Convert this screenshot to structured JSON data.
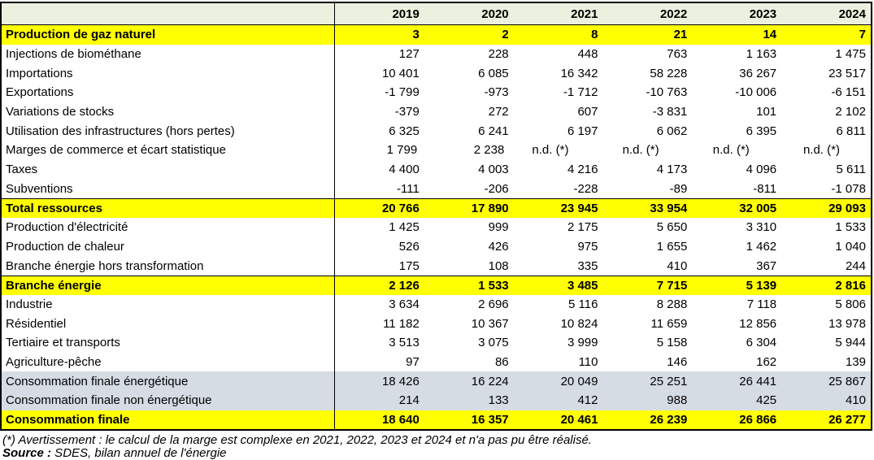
{
  "chart_data": {
    "type": "table",
    "title": "",
    "unit": "",
    "years": [
      "2019",
      "2020",
      "2021",
      "2022",
      "2023",
      "2024"
    ],
    "rows": [
      {
        "label": "Production de gaz naturel",
        "style": "yellow",
        "values": [
          "3",
          "2",
          "8",
          "21",
          "14",
          "7"
        ]
      },
      {
        "label": "Injections de biométhane",
        "style": "plain",
        "values": [
          "127",
          "228",
          "448",
          "763",
          "1 163",
          "1 475"
        ]
      },
      {
        "label": "Importations",
        "style": "plain",
        "values": [
          "10 401",
          "6 085",
          "16 342",
          "58 228",
          "36 267",
          "23 517"
        ]
      },
      {
        "label": "Exportations",
        "style": "plain",
        "values": [
          "-1 799",
          "-973",
          "-1 712",
          "-10 763",
          "-10 006",
          "-6 151"
        ]
      },
      {
        "label": "Variations de stocks",
        "style": "plain",
        "values": [
          "-379",
          "272",
          "607",
          "-3 831",
          "101",
          "2 102"
        ]
      },
      {
        "label": "Utilisation des infrastructures (hors pertes)",
        "style": "plain",
        "values": [
          "6 325",
          "6 241",
          "6 197",
          "6 062",
          "6 395",
          "6 811"
        ]
      },
      {
        "label": "Marges de commerce et écart statistique",
        "style": "plain",
        "values": [
          "1 799",
          "2 238",
          "n.d. (*)",
          "n.d. (*)",
          "n.d. (*)",
          "n.d. (*)"
        ]
      },
      {
        "label": "Taxes",
        "style": "plain",
        "values": [
          "4 400",
          "4 003",
          "4 216",
          "4 173",
          "4 096",
          "5 611"
        ]
      },
      {
        "label": "Subventions",
        "style": "plain",
        "values": [
          "-111",
          "-206",
          "-228",
          "-89",
          "-811",
          "-1 078"
        ]
      },
      {
        "label": "Total ressources",
        "style": "yellow",
        "values": [
          "20 766",
          "17 890",
          "23 945",
          "33 954",
          "32 005",
          "29 093"
        ]
      },
      {
        "label": "Production d'électricité",
        "style": "plain",
        "values": [
          "1 425",
          "999",
          "2 175",
          "5 650",
          "3 310",
          "1 533"
        ]
      },
      {
        "label": "Production de chaleur",
        "style": "plain",
        "values": [
          "526",
          "426",
          "975",
          "1 655",
          "1 462",
          "1 040"
        ]
      },
      {
        "label": "Branche énergie hors transformation",
        "style": "plain",
        "values": [
          "175",
          "108",
          "335",
          "410",
          "367",
          "244"
        ]
      },
      {
        "label": "Branche énergie",
        "style": "yellow",
        "values": [
          "2 126",
          "1 533",
          "3 485",
          "7 715",
          "5 139",
          "2 816"
        ]
      },
      {
        "label": "Industrie",
        "style": "plain",
        "values": [
          "3 634",
          "2 696",
          "5 116",
          "8 288",
          "7 118",
          "5 806"
        ]
      },
      {
        "label": "Résidentiel",
        "style": "plain",
        "values": [
          "11 182",
          "10 367",
          "10 824",
          "11 659",
          "12 856",
          "13 978"
        ]
      },
      {
        "label": "Tertiaire et transports",
        "style": "plain",
        "values": [
          "3 513",
          "3 075",
          "3 999",
          "5 158",
          "6 304",
          "5 944"
        ]
      },
      {
        "label": "Agriculture-pêche",
        "style": "plain",
        "values": [
          "97",
          "86",
          "110",
          "146",
          "162",
          "139"
        ]
      },
      {
        "label": "Consommation finale énergétique",
        "style": "gray",
        "values": [
          "18 426",
          "16 224",
          "20 049",
          "25 251",
          "26 441",
          "25 867"
        ]
      },
      {
        "label": "Consommation finale non énergétique",
        "style": "gray",
        "values": [
          "214",
          "133",
          "412",
          "988",
          "425",
          "410"
        ]
      },
      {
        "label": "Consommation finale",
        "style": "yellow",
        "values": [
          "18 640",
          "16 357",
          "20 461",
          "26 239",
          "26 866",
          "26 277"
        ]
      }
    ]
  },
  "footnotes": {
    "asterisk": "(*) Avertissement : le calcul de la marge est complexe en 2021, 2022, 2023 et 2024 et n'a pas pu être réalisé.",
    "source_label": "Source :",
    "source_text": " SDES, bilan annuel de l'énergie"
  },
  "colors": {
    "header_bg": "#EBF1DE",
    "highlight_yellow": "#FFFF00",
    "subtotal_gray": "#D6DCE4",
    "border": "#000000"
  }
}
